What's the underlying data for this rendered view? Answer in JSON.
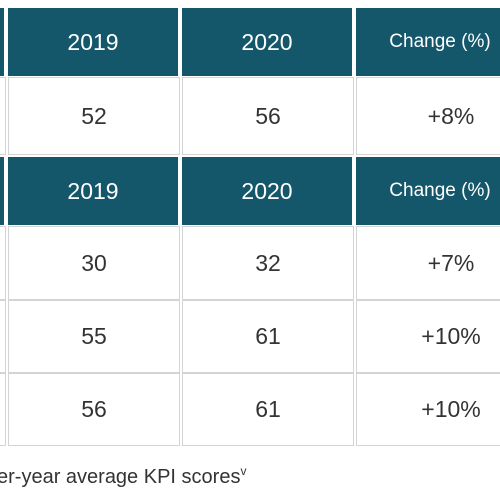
{
  "tables": [
    {
      "header": [
        "2019",
        "2020",
        "Change (%)"
      ],
      "rows": [
        [
          "52",
          "56",
          "+8%"
        ]
      ]
    },
    {
      "header": [
        "2019",
        "2020",
        "Change (%)"
      ],
      "rows": [
        [
          "30",
          "32",
          "+7%"
        ],
        [
          "55",
          "61",
          "+10%"
        ],
        [
          "56",
          "61",
          "+10%"
        ]
      ]
    }
  ],
  "caption": {
    "text": "er-year average KPI scores",
    "superscript": "v"
  }
}
